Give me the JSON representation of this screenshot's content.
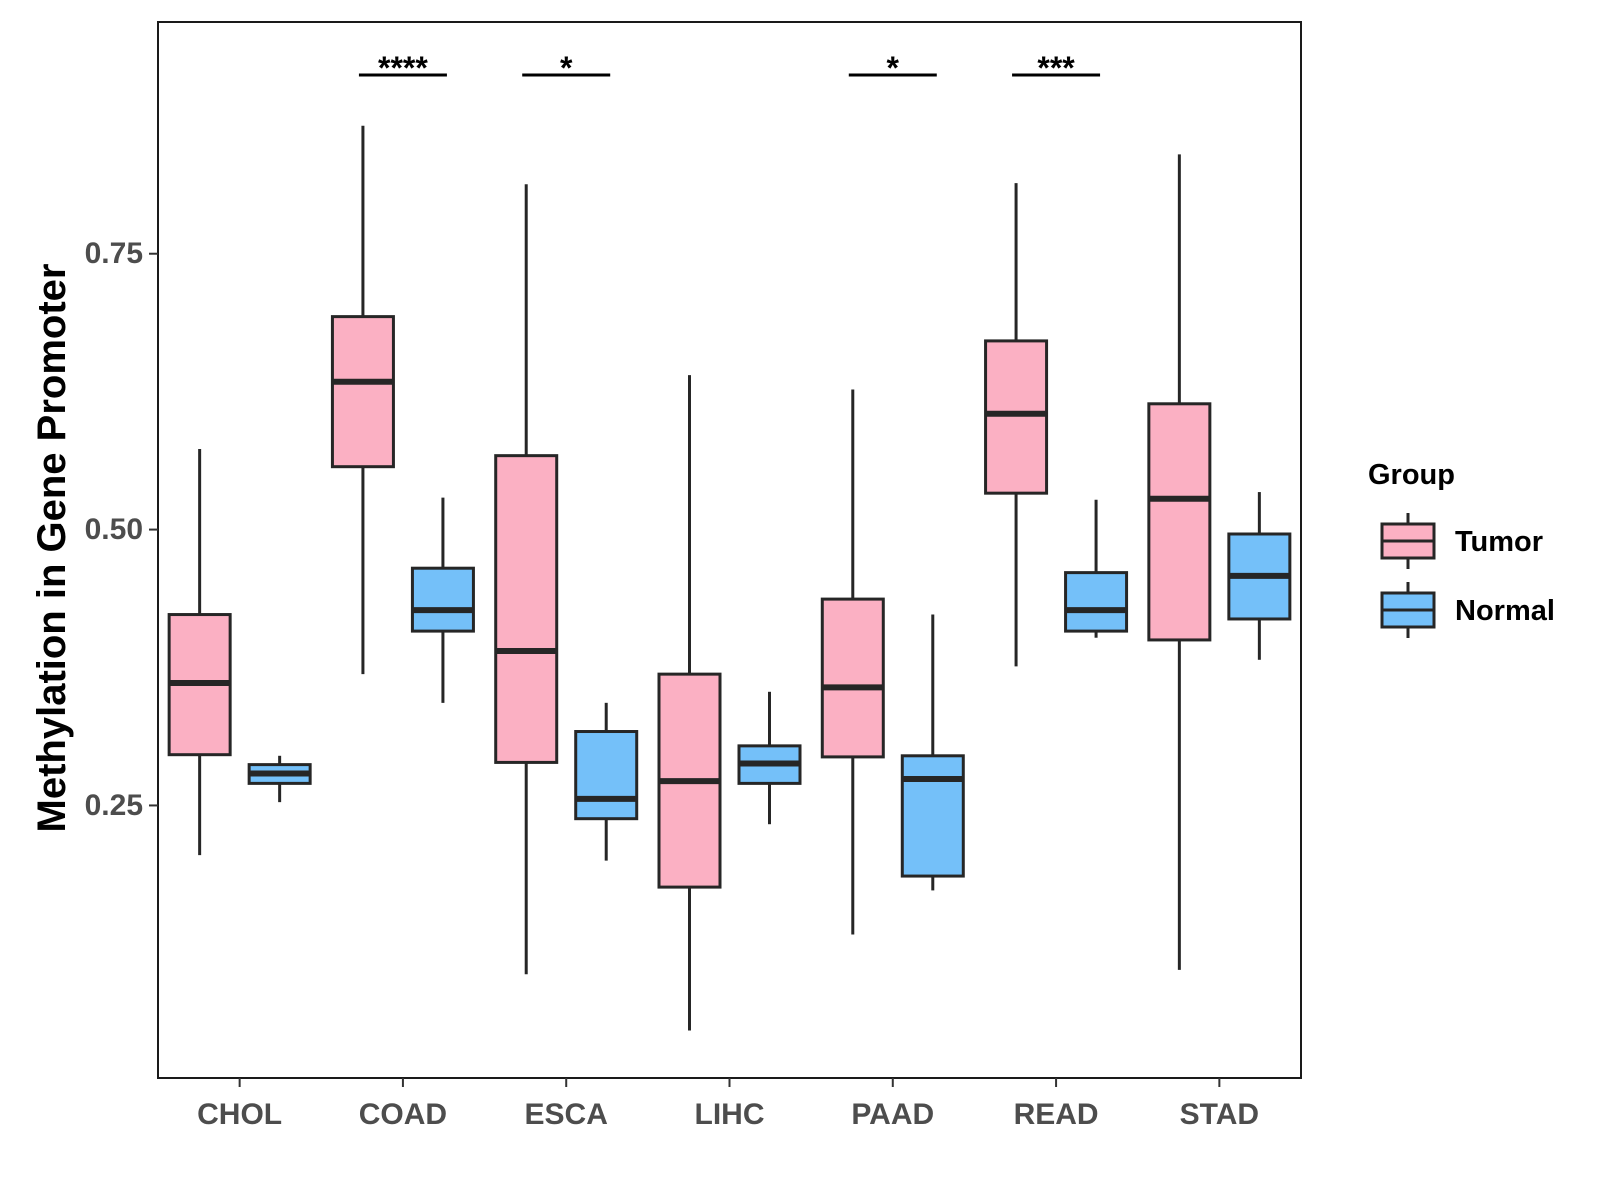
{
  "chart_data": {
    "type": "boxplot",
    "title": "",
    "xlabel": "",
    "ylabel": "Methylation in Gene Promoter",
    "ylim": [
      0.003,
      0.96
    ],
    "yticks": [
      0.25,
      0.5,
      0.75
    ],
    "ytick_labels": [
      "0.25",
      "0.50",
      "0.75"
    ],
    "categories": [
      "CHOL",
      "COAD",
      "ESCA",
      "LIHC",
      "PAAD",
      "READ",
      "STAD"
    ],
    "legend": {
      "title": "Group",
      "position": "right",
      "entries": [
        {
          "name": "Tumor",
          "color": "#FBB0C3"
        },
        {
          "name": "Normal",
          "color": "#74C0F9"
        }
      ]
    },
    "series": [
      {
        "name": "Tumor",
        "color": "#FBB0C3",
        "boxes": [
          {
            "category": "CHOL",
            "min": 0.205,
            "q1": 0.296,
            "median": 0.361,
            "q3": 0.423,
            "max": 0.573
          },
          {
            "category": "COAD",
            "min": 0.369,
            "q1": 0.557,
            "median": 0.634,
            "q3": 0.693,
            "max": 0.866
          },
          {
            "category": "ESCA",
            "min": 0.097,
            "q1": 0.289,
            "median": 0.39,
            "q3": 0.567,
            "max": 0.813
          },
          {
            "category": "LIHC",
            "min": 0.046,
            "q1": 0.176,
            "median": 0.272,
            "q3": 0.369,
            "max": 0.64
          },
          {
            "category": "PAAD",
            "min": 0.133,
            "q1": 0.294,
            "median": 0.357,
            "q3": 0.437,
            "max": 0.627
          },
          {
            "category": "READ",
            "min": 0.376,
            "q1": 0.533,
            "median": 0.605,
            "q3": 0.671,
            "max": 0.814
          },
          {
            "category": "STAD",
            "min": 0.101,
            "q1": 0.4,
            "median": 0.528,
            "q3": 0.614,
            "max": 0.84
          }
        ]
      },
      {
        "name": "Normal",
        "color": "#74C0F9",
        "boxes": [
          {
            "category": "CHOL",
            "min": 0.253,
            "q1": 0.27,
            "median": 0.279,
            "q3": 0.287,
            "max": 0.295
          },
          {
            "category": "COAD",
            "min": 0.343,
            "q1": 0.408,
            "median": 0.427,
            "q3": 0.465,
            "max": 0.529
          },
          {
            "category": "ESCA",
            "min": 0.2,
            "q1": 0.238,
            "median": 0.256,
            "q3": 0.317,
            "max": 0.343
          },
          {
            "category": "LIHC",
            "min": 0.233,
            "q1": 0.27,
            "median": 0.288,
            "q3": 0.304,
            "max": 0.353
          },
          {
            "category": "PAAD",
            "min": 0.173,
            "q1": 0.186,
            "median": 0.274,
            "q3": 0.295,
            "max": 0.423
          },
          {
            "category": "READ",
            "min": 0.402,
            "q1": 0.408,
            "median": 0.427,
            "q3": 0.461,
            "max": 0.527
          },
          {
            "category": "STAD",
            "min": 0.382,
            "q1": 0.419,
            "median": 0.458,
            "q3": 0.496,
            "max": 0.534
          }
        ]
      }
    ],
    "significance": [
      {
        "category": "COAD",
        "label": "****"
      },
      {
        "category": "ESCA",
        "label": "*"
      },
      {
        "category": "PAAD",
        "label": "*"
      },
      {
        "category": "READ",
        "label": "***"
      }
    ]
  }
}
